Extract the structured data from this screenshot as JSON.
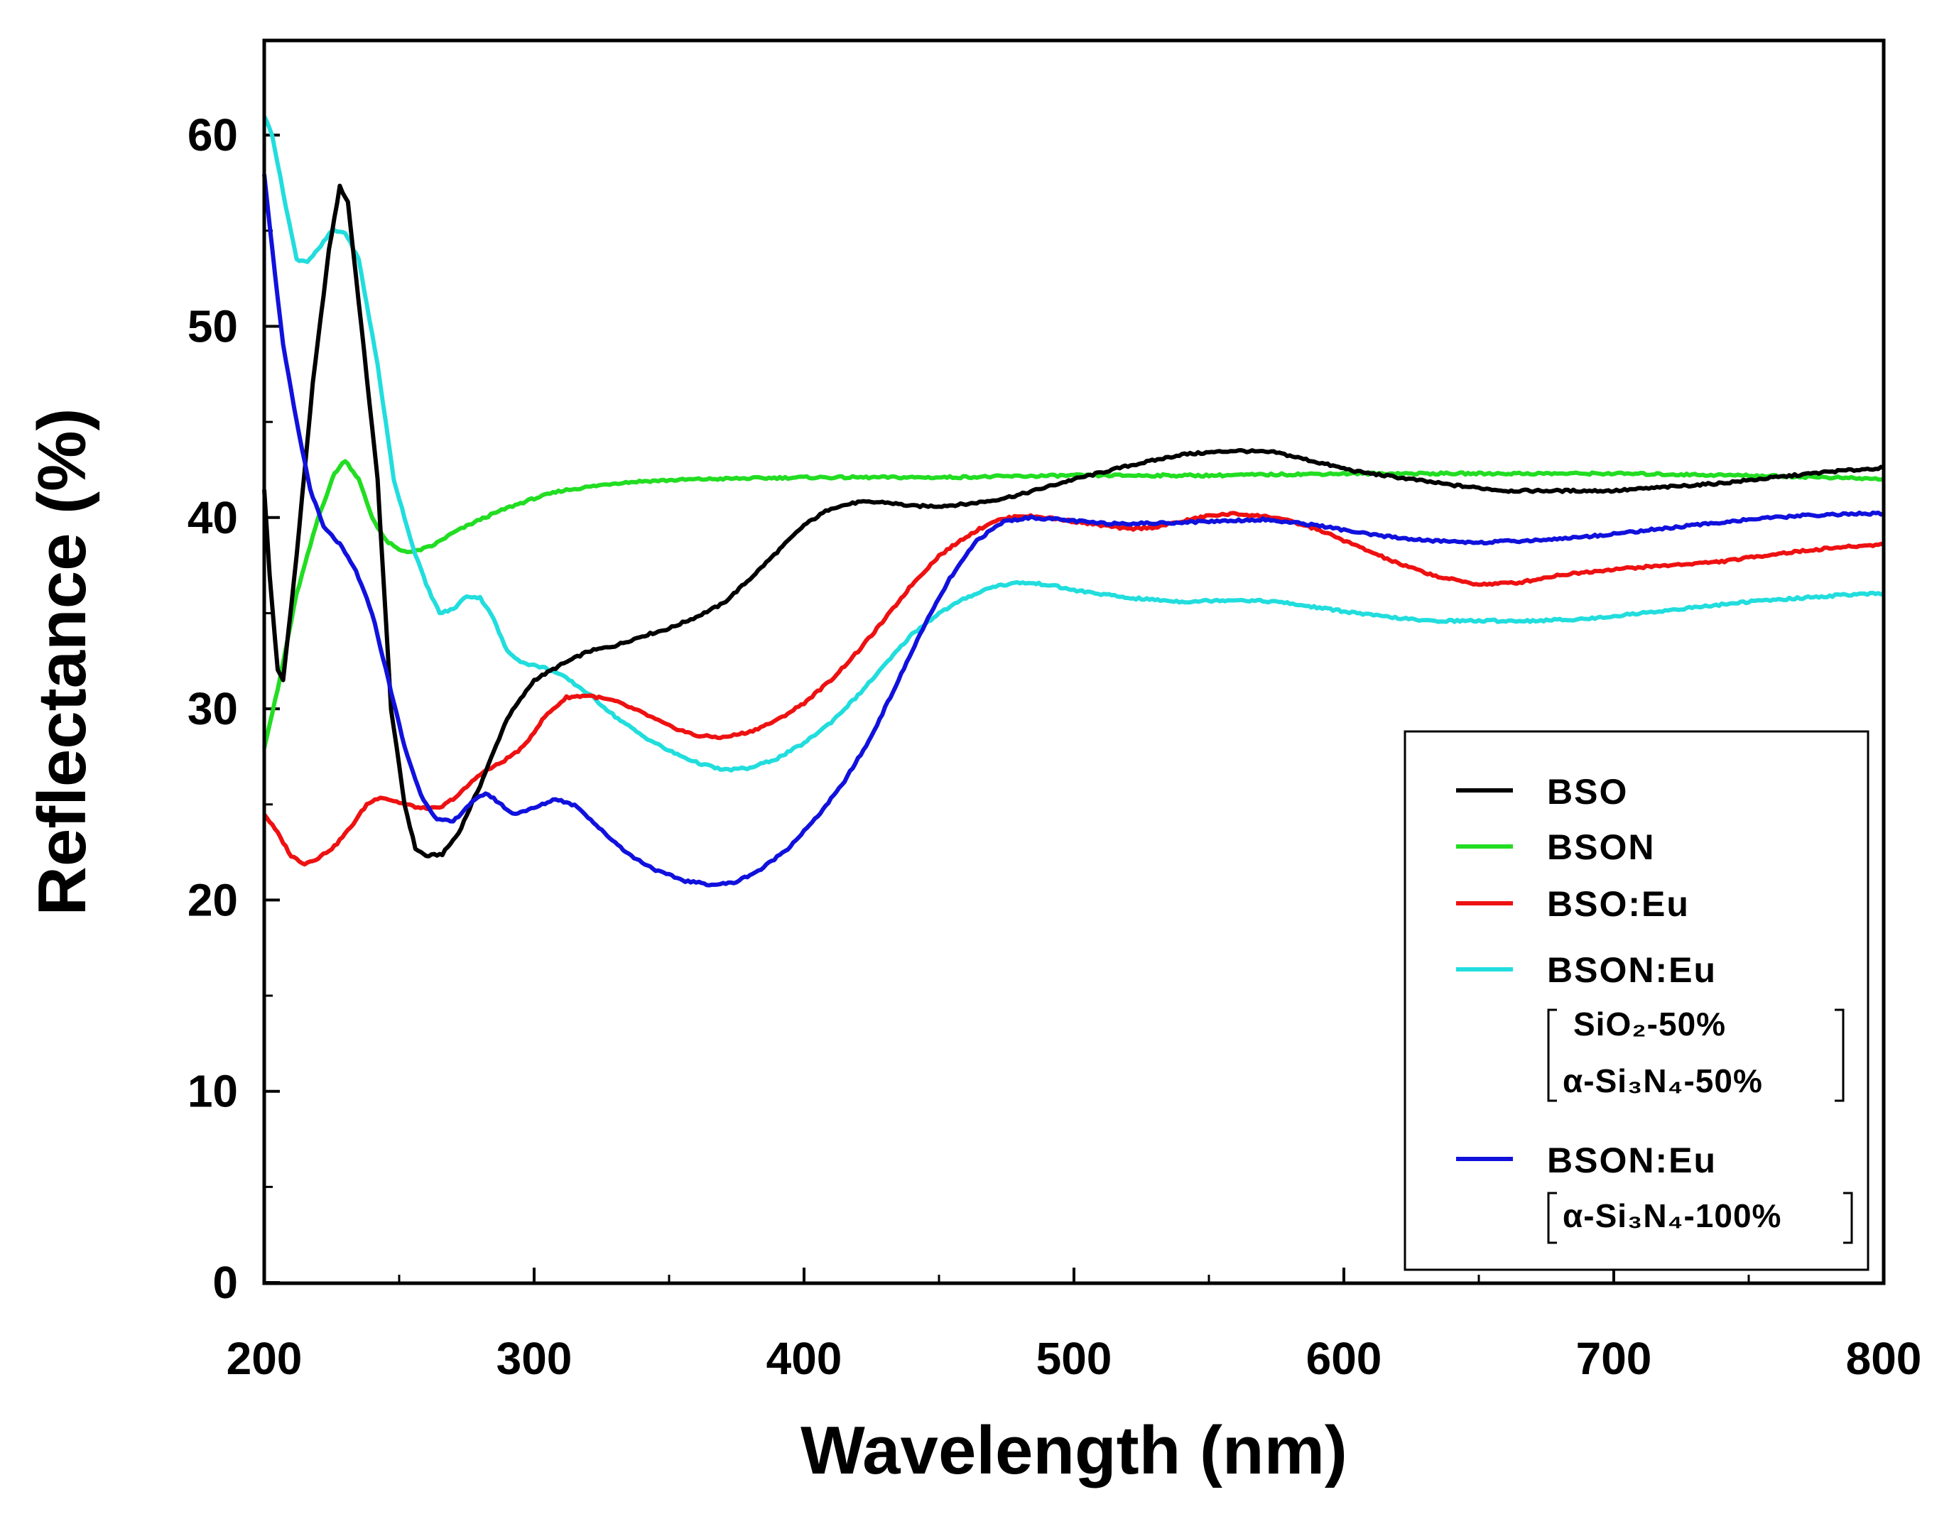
{
  "chart_data": {
    "type": "line",
    "title": "",
    "xlabel": "Wavelength (nm)",
    "ylabel": "Reflectance (%)",
    "xlim": [
      200,
      800
    ],
    "ylim": [
      0,
      65
    ],
    "x_ticks": [
      200,
      300,
      400,
      500,
      600,
      700,
      800
    ],
    "y_ticks": [
      0,
      10,
      20,
      30,
      40,
      50,
      60
    ],
    "x_ticks_minor": [
      250,
      350,
      450,
      550,
      650,
      750
    ],
    "y_ticks_minor": [
      5,
      15,
      25,
      35,
      45,
      55
    ],
    "grid": false,
    "legend_position": "bottom-right",
    "series": [
      {
        "name": "BSO",
        "color": "#000000",
        "points": [
          [
            200,
            41.5
          ],
          [
            202,
            37
          ],
          [
            205,
            32
          ],
          [
            207,
            31.5
          ],
          [
            212,
            38
          ],
          [
            218,
            47
          ],
          [
            224,
            54
          ],
          [
            228,
            57.3
          ],
          [
            231,
            56.5
          ],
          [
            236,
            50
          ],
          [
            242,
            42
          ],
          [
            247,
            30
          ],
          [
            252,
            25
          ],
          [
            256,
            22.7
          ],
          [
            260,
            22.3
          ],
          [
            266,
            22.4
          ],
          [
            272,
            23.5
          ],
          [
            280,
            26
          ],
          [
            290,
            29.5
          ],
          [
            300,
            31.5
          ],
          [
            310,
            32.3
          ],
          [
            320,
            33
          ],
          [
            330,
            33.3
          ],
          [
            340,
            33.8
          ],
          [
            350,
            34.2
          ],
          [
            360,
            34.8
          ],
          [
            370,
            35.5
          ],
          [
            380,
            36.8
          ],
          [
            390,
            38.2
          ],
          [
            400,
            39.6
          ],
          [
            410,
            40.5
          ],
          [
            420,
            40.8
          ],
          [
            430,
            40.8
          ],
          [
            440,
            40.6
          ],
          [
            450,
            40.6
          ],
          [
            460,
            40.7
          ],
          [
            470,
            40.9
          ],
          [
            480,
            41.2
          ],
          [
            490,
            41.6
          ],
          [
            500,
            42
          ],
          [
            520,
            42.7
          ],
          [
            540,
            43.3
          ],
          [
            560,
            43.5
          ],
          [
            575,
            43.4
          ],
          [
            590,
            42.9
          ],
          [
            605,
            42.4
          ],
          [
            620,
            42.1
          ],
          [
            640,
            41.7
          ],
          [
            660,
            41.4
          ],
          [
            680,
            41.4
          ],
          [
            700,
            41.4
          ],
          [
            720,
            41.6
          ],
          [
            740,
            41.8
          ],
          [
            760,
            42.1
          ],
          [
            780,
            42.4
          ],
          [
            800,
            42.6
          ]
        ]
      },
      {
        "name": "BSON",
        "color": "#22dd22",
        "points": [
          [
            200,
            28
          ],
          [
            205,
            31
          ],
          [
            212,
            36
          ],
          [
            220,
            40
          ],
          [
            226,
            42.3
          ],
          [
            230,
            43
          ],
          [
            235,
            42
          ],
          [
            240,
            40
          ],
          [
            245,
            38.8
          ],
          [
            250,
            38.3
          ],
          [
            255,
            38.2
          ],
          [
            262,
            38.5
          ],
          [
            270,
            39.2
          ],
          [
            280,
            39.9
          ],
          [
            290,
            40.5
          ],
          [
            300,
            41
          ],
          [
            310,
            41.4
          ],
          [
            320,
            41.6
          ],
          [
            330,
            41.8
          ],
          [
            340,
            41.9
          ],
          [
            360,
            42
          ],
          [
            400,
            42.1
          ],
          [
            450,
            42.1
          ],
          [
            500,
            42.2
          ],
          [
            550,
            42.2
          ],
          [
            600,
            42.3
          ],
          [
            650,
            42.3
          ],
          [
            700,
            42.3
          ],
          [
            750,
            42.2
          ],
          [
            780,
            42.1
          ],
          [
            800,
            42
          ]
        ]
      },
      {
        "name": "BSO:Eu",
        "color": "#ee1111",
        "points": [
          [
            200,
            24.5
          ],
          [
            205,
            23.5
          ],
          [
            210,
            22.3
          ],
          [
            215,
            21.9
          ],
          [
            220,
            22.2
          ],
          [
            226,
            22.8
          ],
          [
            232,
            23.8
          ],
          [
            238,
            25
          ],
          [
            243,
            25.4
          ],
          [
            250,
            25.1
          ],
          [
            258,
            24.8
          ],
          [
            265,
            24.8
          ],
          [
            272,
            25.5
          ],
          [
            280,
            26.6
          ],
          [
            288,
            27.2
          ],
          [
            296,
            28
          ],
          [
            304,
            29.6
          ],
          [
            312,
            30.6
          ],
          [
            320,
            30.7
          ],
          [
            330,
            30.4
          ],
          [
            340,
            29.8
          ],
          [
            350,
            29.1
          ],
          [
            360,
            28.6
          ],
          [
            370,
            28.5
          ],
          [
            380,
            28.8
          ],
          [
            390,
            29.4
          ],
          [
            400,
            30.3
          ],
          [
            410,
            31.5
          ],
          [
            420,
            33
          ],
          [
            430,
            34.7
          ],
          [
            440,
            36.5
          ],
          [
            450,
            38
          ],
          [
            460,
            39
          ],
          [
            470,
            39.8
          ],
          [
            480,
            40.1
          ],
          [
            490,
            40
          ],
          [
            500,
            39.8
          ],
          [
            510,
            39.6
          ],
          [
            520,
            39.4
          ],
          [
            530,
            39.5
          ],
          [
            540,
            39.8
          ],
          [
            550,
            40.1
          ],
          [
            560,
            40.2
          ],
          [
            575,
            40
          ],
          [
            590,
            39.4
          ],
          [
            605,
            38.5
          ],
          [
            620,
            37.6
          ],
          [
            635,
            36.9
          ],
          [
            650,
            36.5
          ],
          [
            665,
            36.6
          ],
          [
            680,
            37
          ],
          [
            700,
            37.3
          ],
          [
            720,
            37.5
          ],
          [
            740,
            37.7
          ],
          [
            760,
            38.1
          ],
          [
            780,
            38.4
          ],
          [
            800,
            38.6
          ]
        ]
      },
      {
        "name": "BSON:Eu",
        "color": "#22dddd",
        "composition": [
          "SiO₂-50%",
          "α-Si₃N₄-50%"
        ],
        "points": [
          [
            200,
            61
          ],
          [
            203,
            60
          ],
          [
            207,
            57
          ],
          [
            212,
            53.5
          ],
          [
            216,
            53.4
          ],
          [
            220,
            54
          ],
          [
            225,
            55
          ],
          [
            230,
            54.9
          ],
          [
            235,
            53.5
          ],
          [
            242,
            48
          ],
          [
            248,
            42
          ],
          [
            255,
            38.5
          ],
          [
            260,
            36.5
          ],
          [
            265,
            35
          ],
          [
            270,
            35.2
          ],
          [
            275,
            35.9
          ],
          [
            280,
            35.8
          ],
          [
            284,
            35
          ],
          [
            290,
            33
          ],
          [
            296,
            32.4
          ],
          [
            305,
            32.1
          ],
          [
            312,
            31.6
          ],
          [
            320,
            30.8
          ],
          [
            330,
            29.6
          ],
          [
            340,
            28.6
          ],
          [
            350,
            27.8
          ],
          [
            360,
            27.2
          ],
          [
            370,
            26.8
          ],
          [
            380,
            26.9
          ],
          [
            390,
            27.4
          ],
          [
            400,
            28.2
          ],
          [
            410,
            29.3
          ],
          [
            420,
            30.7
          ],
          [
            430,
            32.3
          ],
          [
            440,
            33.9
          ],
          [
            450,
            35
          ],
          [
            460,
            35.8
          ],
          [
            470,
            36.4
          ],
          [
            480,
            36.6
          ],
          [
            490,
            36.5
          ],
          [
            500,
            36.2
          ],
          [
            520,
            35.8
          ],
          [
            540,
            35.6
          ],
          [
            560,
            35.7
          ],
          [
            575,
            35.6
          ],
          [
            590,
            35.3
          ],
          [
            610,
            34.9
          ],
          [
            630,
            34.6
          ],
          [
            650,
            34.6
          ],
          [
            670,
            34.6
          ],
          [
            690,
            34.7
          ],
          [
            710,
            35
          ],
          [
            730,
            35.3
          ],
          [
            750,
            35.6
          ],
          [
            770,
            35.8
          ],
          [
            790,
            36
          ],
          [
            800,
            36
          ]
        ]
      },
      {
        "name": "BSON:Eu",
        "color": "#1111dd",
        "composition": [
          "α-Si₃N₄-100%"
        ],
        "points": [
          [
            200,
            58
          ],
          [
            203,
            54
          ],
          [
            207,
            49
          ],
          [
            212,
            45
          ],
          [
            217,
            41.5
          ],
          [
            222,
            39.5
          ],
          [
            228,
            38.6
          ],
          [
            234,
            37.2
          ],
          [
            240,
            35
          ],
          [
            246,
            31.5
          ],
          [
            252,
            28
          ],
          [
            258,
            25.5
          ],
          [
            264,
            24.2
          ],
          [
            270,
            24.1
          ],
          [
            276,
            25
          ],
          [
            282,
            25.6
          ],
          [
            286,
            25.2
          ],
          [
            292,
            24.5
          ],
          [
            300,
            24.8
          ],
          [
            308,
            25.3
          ],
          [
            316,
            24.9
          ],
          [
            326,
            23.5
          ],
          [
            336,
            22.3
          ],
          [
            346,
            21.5
          ],
          [
            356,
            21
          ],
          [
            366,
            20.8
          ],
          [
            374,
            20.9
          ],
          [
            384,
            21.6
          ],
          [
            394,
            22.7
          ],
          [
            404,
            24.2
          ],
          [
            414,
            26
          ],
          [
            424,
            28.3
          ],
          [
            434,
            31.2
          ],
          [
            444,
            34.2
          ],
          [
            454,
            36.8
          ],
          [
            464,
            38.8
          ],
          [
            474,
            39.8
          ],
          [
            484,
            40
          ],
          [
            494,
            39.9
          ],
          [
            510,
            39.7
          ],
          [
            530,
            39.7
          ],
          [
            550,
            39.8
          ],
          [
            570,
            39.9
          ],
          [
            590,
            39.6
          ],
          [
            610,
            39.1
          ],
          [
            630,
            38.8
          ],
          [
            650,
            38.7
          ],
          [
            670,
            38.8
          ],
          [
            690,
            39
          ],
          [
            710,
            39.3
          ],
          [
            730,
            39.6
          ],
          [
            750,
            39.9
          ],
          [
            770,
            40.1
          ],
          [
            790,
            40.2
          ],
          [
            800,
            40.2
          ]
        ]
      }
    ]
  }
}
